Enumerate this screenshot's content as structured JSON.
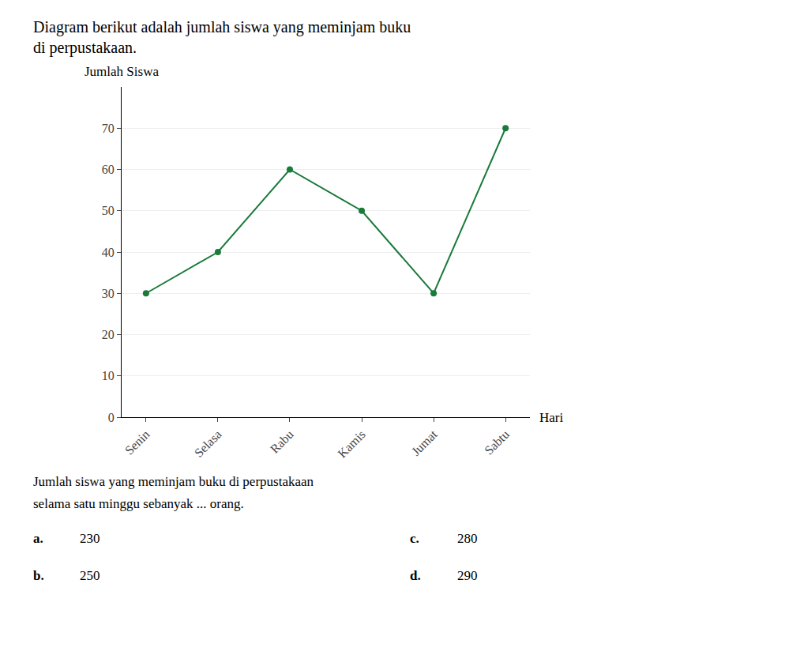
{
  "chart_data": {
    "type": "line",
    "title": "Diagram berikut adalah jumlah siswa yang meminjam buku\ndi perpustakaan.",
    "ylabel": "Jumlah Siswa",
    "xlabel": "Hari",
    "categories": [
      "Senin",
      "Selasa",
      "Rabu",
      "Kamis",
      "Jumat",
      "Sabtu"
    ],
    "values": [
      30,
      40,
      60,
      50,
      30,
      70
    ],
    "color": "#1a7a3a",
    "marker": "circle",
    "ylim": [
      0,
      80
    ],
    "yticks": [
      0,
      10,
      20,
      30,
      40,
      50,
      60,
      70
    ],
    "grid": true,
    "annotations": [
      "Jumlah siswa yang meminjam buku di perpustakaan",
      "selama satu minggu sebanyak ... orang.",
      "a.",
      "230",
      "b.",
      "250",
      "c.",
      "280",
      "d.",
      "290"
    ]
  }
}
